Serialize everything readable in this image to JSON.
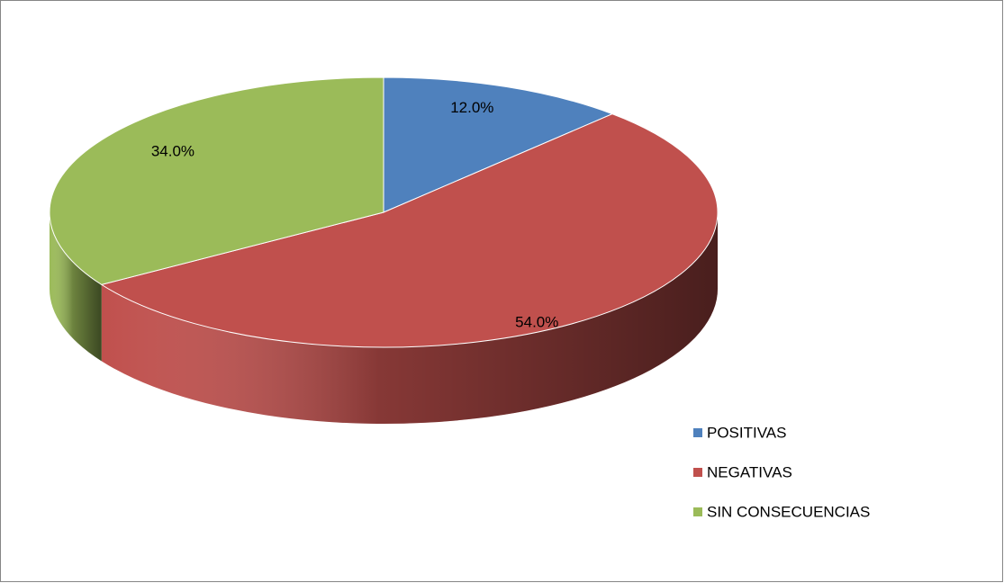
{
  "chart_data": {
    "type": "pie",
    "categories": [
      "POSITIVAS",
      "NEGATIVAS",
      "SIN CONSECUENCIAS"
    ],
    "values": [
      12,
      54,
      34
    ],
    "value_labels": [
      "12.0%",
      "54.0%",
      "34.0%"
    ],
    "colors": [
      "#4f81bd",
      "#c0504d",
      "#9bbb59"
    ],
    "legend": "right"
  }
}
